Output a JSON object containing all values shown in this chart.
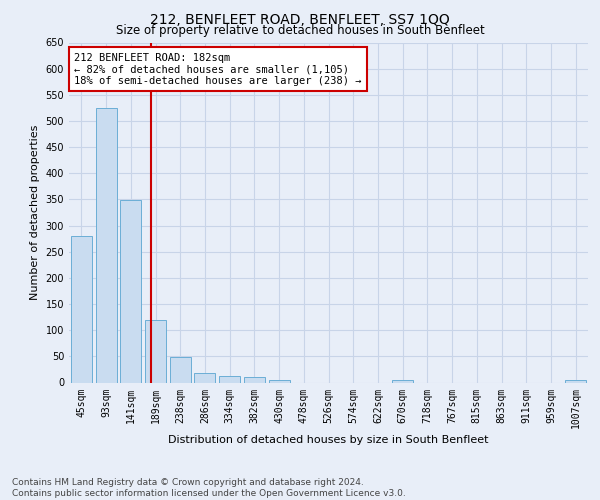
{
  "title": "212, BENFLEET ROAD, BENFLEET, SS7 1QQ",
  "subtitle": "Size of property relative to detached houses in South Benfleet",
  "xlabel": "Distribution of detached houses by size in South Benfleet",
  "ylabel": "Number of detached properties",
  "footer_line1": "Contains HM Land Registry data © Crown copyright and database right 2024.",
  "footer_line2": "Contains public sector information licensed under the Open Government Licence v3.0.",
  "bin_labels": [
    "45sqm",
    "93sqm",
    "141sqm",
    "189sqm",
    "238sqm",
    "286sqm",
    "334sqm",
    "382sqm",
    "430sqm",
    "478sqm",
    "526sqm",
    "574sqm",
    "622sqm",
    "670sqm",
    "718sqm",
    "767sqm",
    "815sqm",
    "863sqm",
    "911sqm",
    "959sqm",
    "1007sqm"
  ],
  "bar_values": [
    280,
    525,
    348,
    120,
    48,
    18,
    12,
    10,
    5,
    0,
    0,
    0,
    0,
    5,
    0,
    0,
    0,
    0,
    0,
    0,
    5
  ],
  "bar_color": "#c9dcf0",
  "bar_edge_color": "#6baed6",
  "red_line_index": 2.82,
  "annotation_text": "212 BENFLEET ROAD: 182sqm\n← 82% of detached houses are smaller (1,105)\n18% of semi-detached houses are larger (238) →",
  "annotation_box_color": "#ffffff",
  "annotation_box_edge_color": "#cc0000",
  "red_line_color": "#cc0000",
  "ylim": [
    0,
    650
  ],
  "yticks": [
    0,
    50,
    100,
    150,
    200,
    250,
    300,
    350,
    400,
    450,
    500,
    550,
    600,
    650
  ],
  "grid_color": "#c8d4e8",
  "background_color": "#e8eef8",
  "title_fontsize": 10,
  "subtitle_fontsize": 8.5,
  "axis_label_fontsize": 8,
  "tick_fontsize": 7,
  "annotation_fontsize": 7.5,
  "footer_fontsize": 6.5
}
